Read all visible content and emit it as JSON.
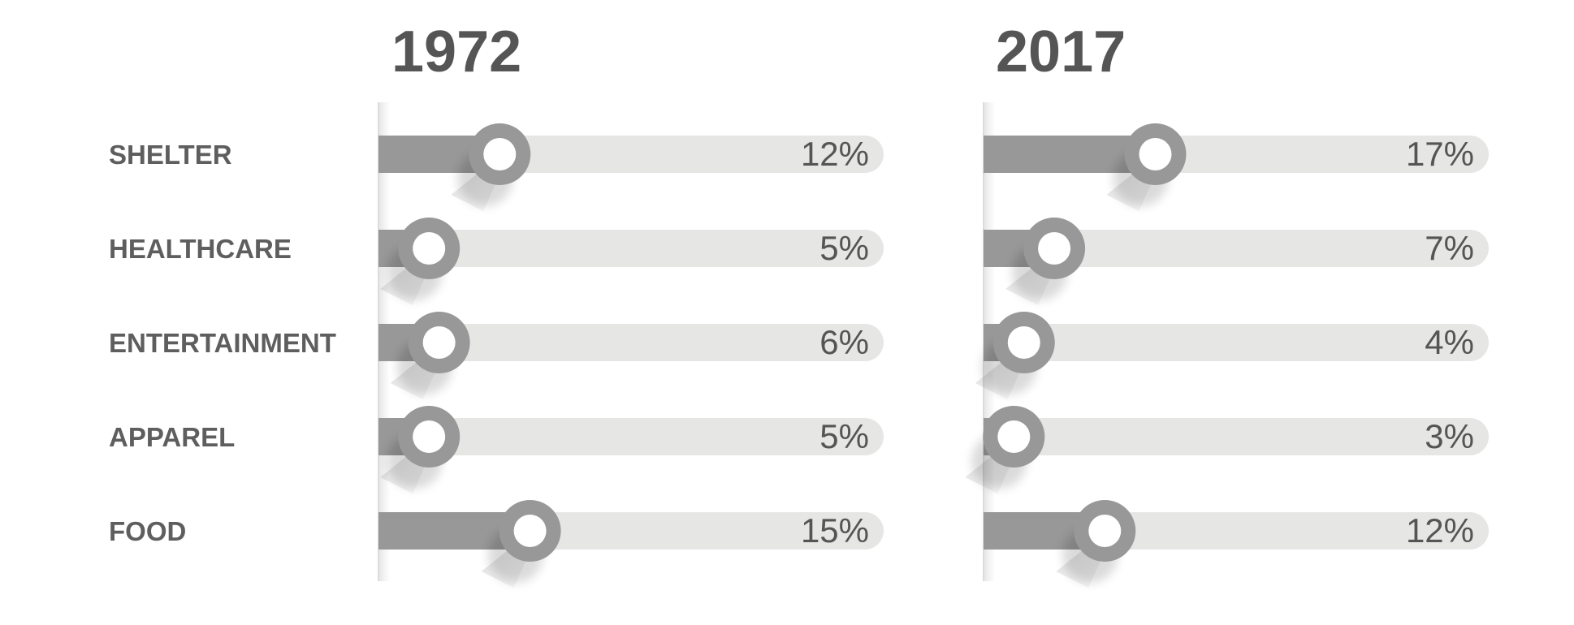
{
  "chart_data": {
    "type": "bar",
    "categories": [
      "SHELTER",
      "HEALTHCARE",
      "ENTERTAINMENT",
      "APPAREL",
      "FOOD"
    ],
    "series": [
      {
        "name": "1972",
        "values": [
          12,
          5,
          6,
          5,
          15
        ],
        "labels": [
          "12%",
          "5%",
          "6%",
          "5%",
          "15%"
        ]
      },
      {
        "name": "2017",
        "values": [
          17,
          7,
          4,
          3,
          12
        ],
        "labels": [
          "17%",
          "7%",
          "4%",
          "3%",
          "12%"
        ]
      }
    ],
    "unit": "%",
    "xlim": [
      0,
      50
    ],
    "title": "",
    "xlabel": "",
    "ylabel": "",
    "grid": false,
    "colors": {
      "track": "#e6e6e5",
      "fill": "#979897",
      "knob_ring": "#979897",
      "knob_center": "#ffffff",
      "text": "#555555"
    }
  }
}
